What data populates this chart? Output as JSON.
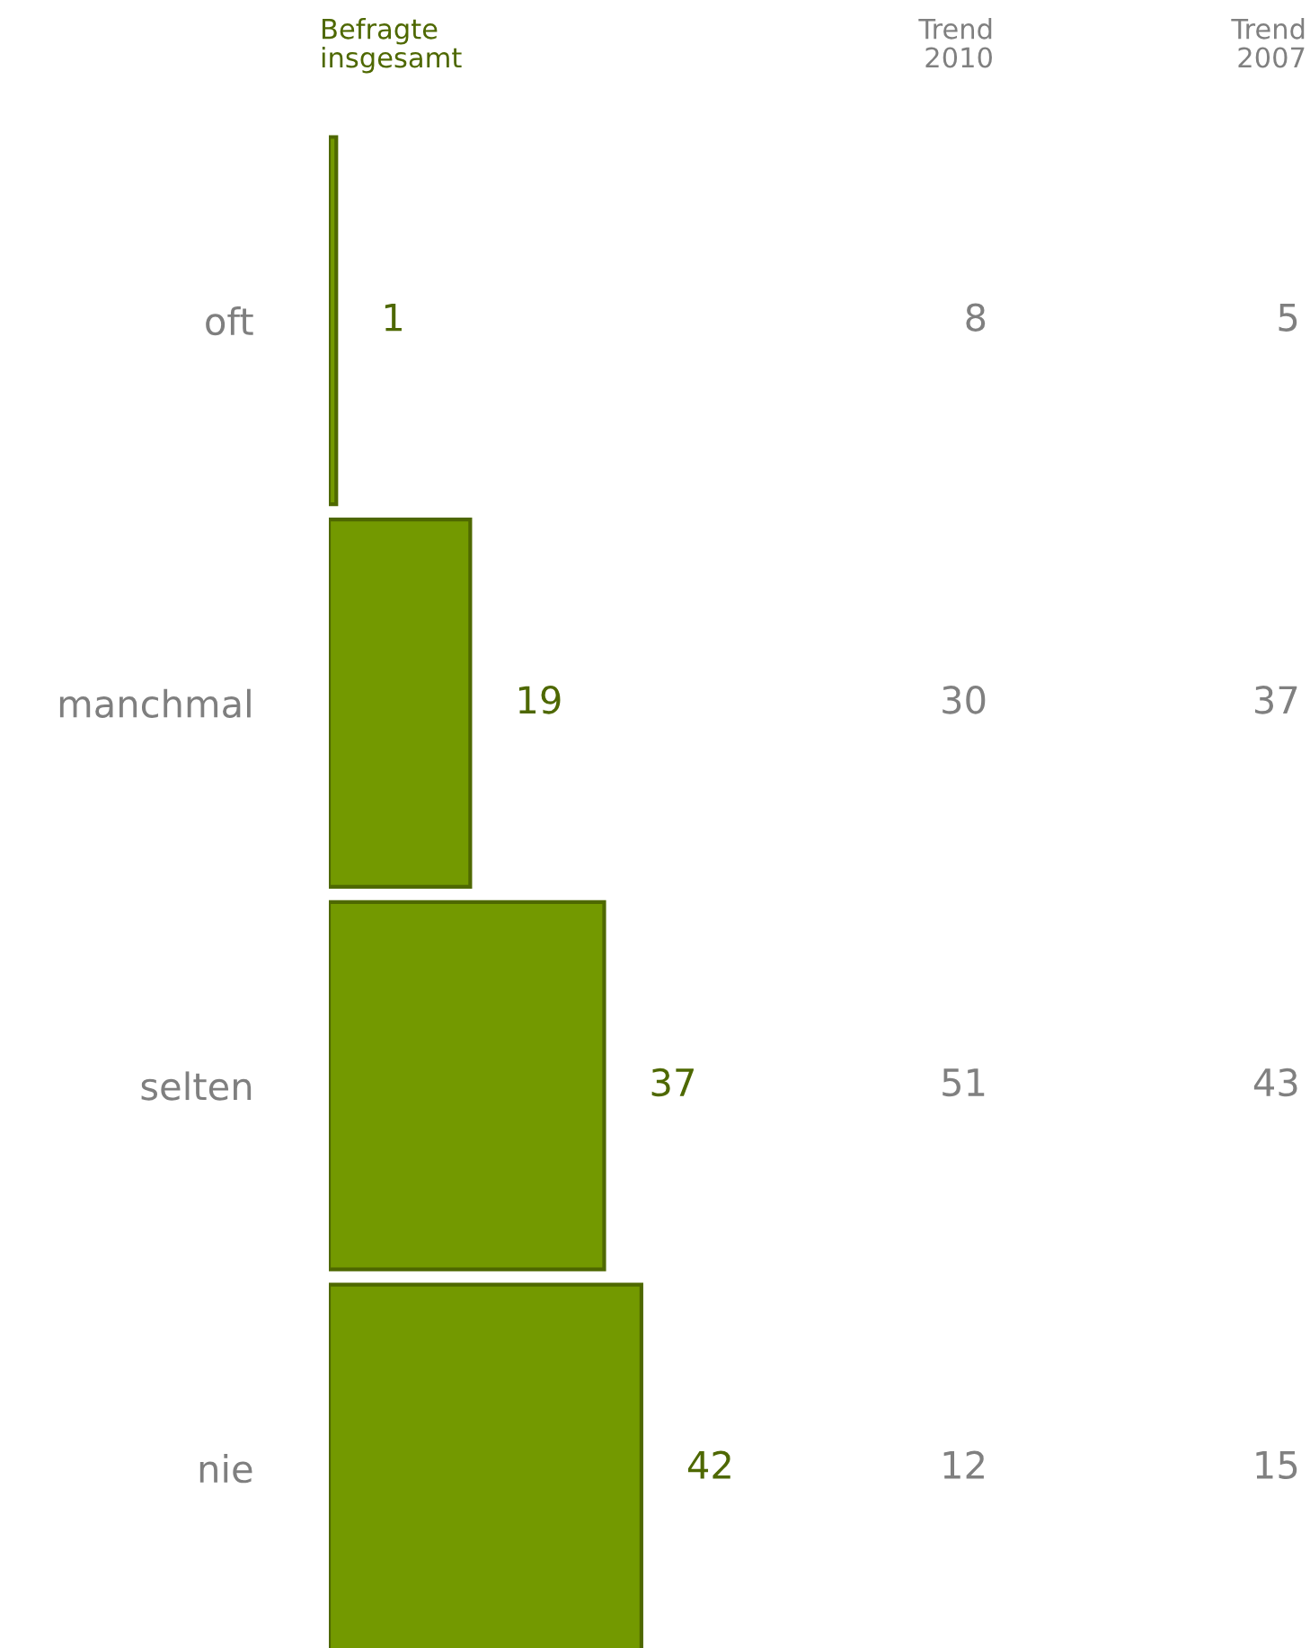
{
  "chart_data": [
    {
      "type": "bar",
      "orientation": "horizontal",
      "categories": [
        "oft",
        "manchmal",
        "selten",
        "nie"
      ],
      "title": "Befragte insgesamt",
      "series": [
        {
          "color": "#739900",
          "values": [
            1,
            19,
            37,
            42
          ]
        }
      ],
      "data_labels": true
    },
    {
      "type": "other",
      "title": "Trend 2010",
      "categories": [
        null,
        null,
        null,
        null
      ],
      "color": "#808080",
      "values": [
        8,
        30,
        51,
        12
      ],
      "data_labels": true
    },
    {
      "type": "other",
      "title": "Trend 2007",
      "categories": [
        null,
        null,
        null,
        null
      ],
      "color": "#808080",
      "values": [
        5,
        37,
        43,
        15
      ],
      "data_labels": true
    }
  ]
}
